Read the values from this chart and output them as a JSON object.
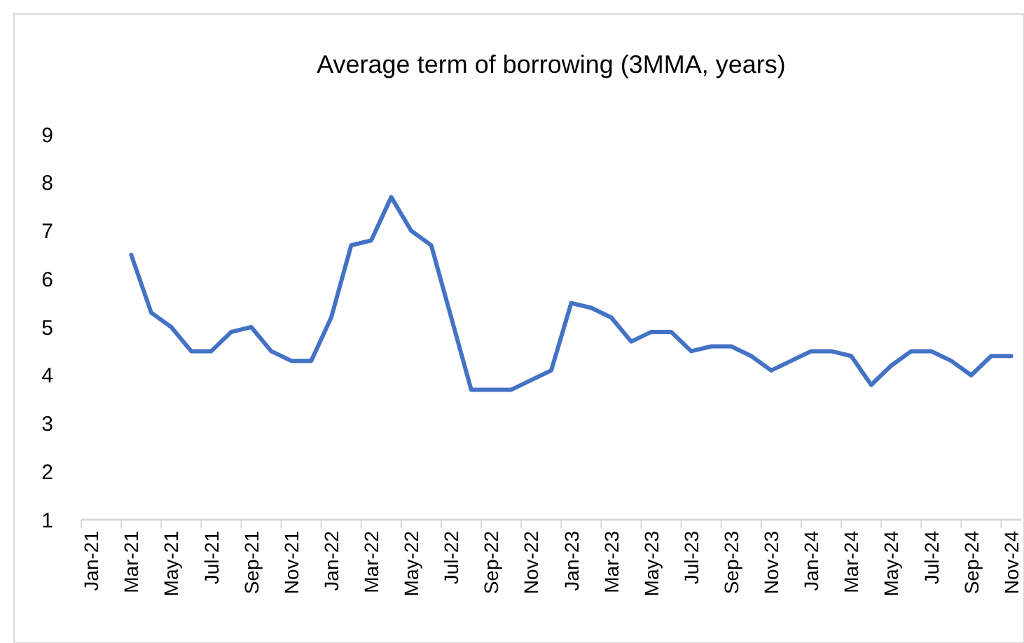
{
  "chart_data": {
    "type": "line",
    "title": "Average term of borrowing (3MMA, years)",
    "categories": [
      "Jan-21",
      null,
      "Mar-21",
      null,
      "May-21",
      null,
      "Jul-21",
      null,
      "Sep-21",
      null,
      "Nov-21",
      null,
      "Jan-22",
      null,
      "Mar-22",
      null,
      "May-22",
      null,
      "Jul-22",
      null,
      "Sep-22",
      null,
      "Nov-22",
      null,
      "Jan-23",
      null,
      "Mar-23",
      null,
      "May-23",
      null,
      "Jul-23",
      null,
      "Sep-23",
      null,
      "Nov-23",
      null,
      "Jan-24",
      null,
      "Mar-24",
      null,
      "May-24",
      null,
      "Jul-24",
      null,
      "Sep-24",
      null,
      "Nov-24"
    ],
    "series": [
      {
        "color": "#4472c4",
        "values": [
          null,
          null,
          6.5,
          5.3,
          5.0,
          4.5,
          4.5,
          4.9,
          5.0,
          4.5,
          4.3,
          4.3,
          5.2,
          6.7,
          6.8,
          7.7,
          7.0,
          6.7,
          5.2,
          3.7,
          3.7,
          3.7,
          3.9,
          4.1,
          5.5,
          5.4,
          5.2,
          4.7,
          4.9,
          4.9,
          4.5,
          4.6,
          4.6,
          4.4,
          4.1,
          4.3,
          4.5,
          4.5,
          4.4,
          3.8,
          4.2,
          4.5,
          4.5,
          4.3,
          4.0,
          4.4,
          4.4
        ]
      }
    ],
    "ylim": [
      1,
      9
    ],
    "yticks": [
      1,
      2,
      3,
      4,
      5,
      6,
      7,
      8,
      9
    ],
    "grid": false,
    "marker": "none",
    "line_style": "solid"
  }
}
